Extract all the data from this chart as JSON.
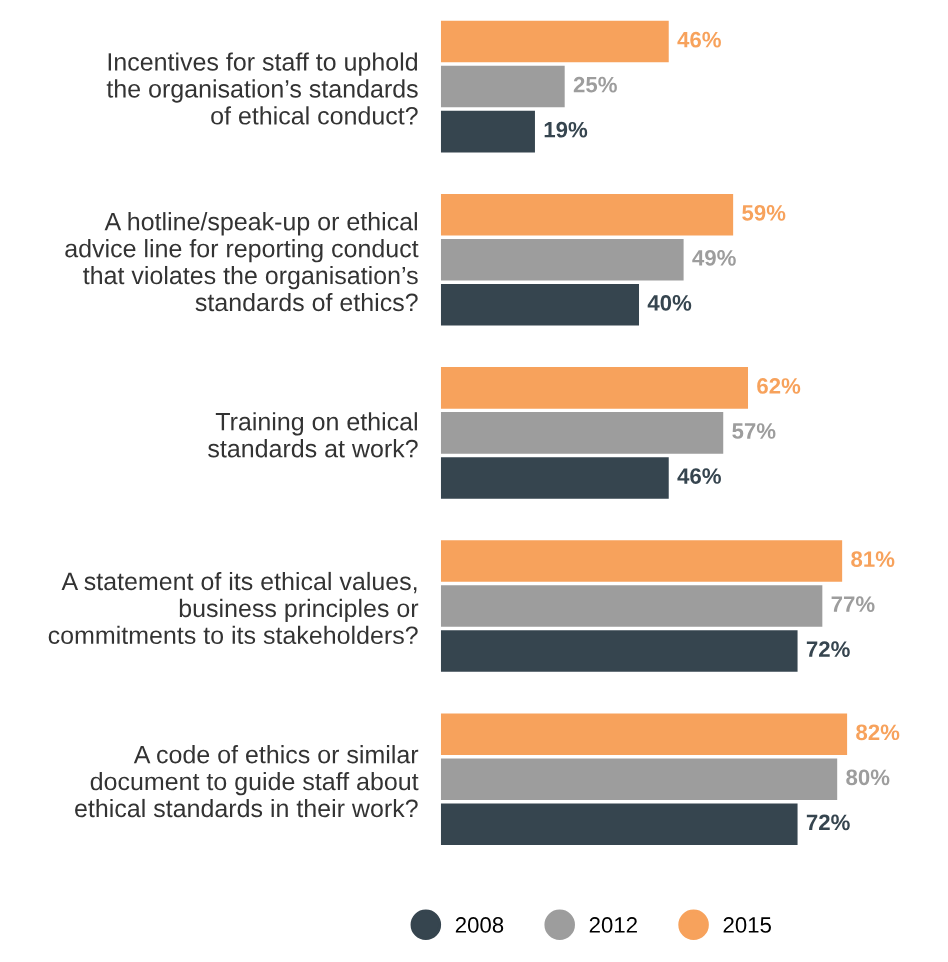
{
  "chart_data": {
    "type": "bar",
    "orientation": "horizontal",
    "categories": [
      "Incentives for staff to uphold\nthe organisation’s standards\nof ethical conduct?",
      "A hotline/speak-up or ethical\nadvice line for reporting conduct\nthat violates the organisation’s\nstandards of ethics?",
      "Training on ethical\nstandards at work?",
      "A statement of its ethical values,\nbusiness principles or\ncommitments to its stakeholders?",
      "A code of ethics or similar\ndocument to guide staff about\nethical standards in their work?"
    ],
    "series": [
      {
        "name": "2008",
        "color": "#36454f",
        "values": [
          19,
          40,
          46,
          72,
          72
        ],
        "value_labels": [
          "19%",
          "40%",
          "46%",
          "72%",
          "72%"
        ]
      },
      {
        "name": "2012",
        "color": "#9d9d9d",
        "values": [
          25,
          49,
          57,
          77,
          80
        ],
        "value_labels": [
          "25%",
          "49%",
          "57%",
          "77%",
          "80%"
        ]
      },
      {
        "name": "2015",
        "color": "#f7a25c",
        "values": [
          46,
          59,
          62,
          81,
          82
        ],
        "value_labels": [
          "46%",
          "59%",
          "62%",
          "81%",
          "82%"
        ]
      }
    ],
    "legend": "bottom",
    "grid": false,
    "tick_labels": "y"
  }
}
